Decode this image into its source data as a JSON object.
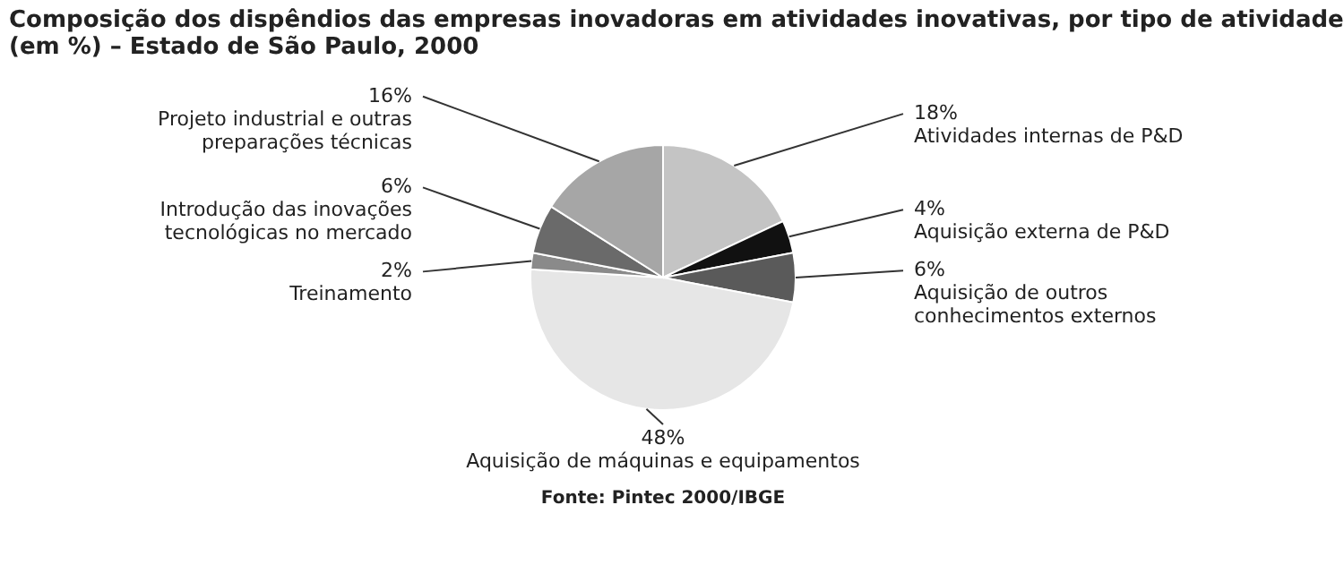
{
  "chart_data": {
    "type": "pie",
    "title": "Composição dos dispêndios das empresas inovadoras em atividades inovativas, por tipo de atividade (em %) – Estado de São Paulo, 2000",
    "categories": [
      "Atividades internas de P&D",
      "Aquisição externa de P&D",
      "Aquisição de outros conhecimentos externos",
      "Aquisição de máquinas e equipamentos",
      "Treinamento",
      "Introdução das inovações tecnológicas no mercado",
      "Projeto industrial e outras preparações técnicas"
    ],
    "values": [
      18,
      4,
      6,
      48,
      2,
      6,
      16
    ],
    "value_labels": [
      "18%",
      "4%",
      "6%",
      "48%",
      "2%",
      "6%",
      "16%"
    ],
    "colors": [
      "#c4c4c4",
      "#111111",
      "#5a5a5a",
      "#e6e6e6",
      "#8a8a8a",
      "#6a6a6a",
      "#a6a6a6"
    ],
    "legend": false,
    "annotations": [
      "Fonte: Pintec 2000/IBGE"
    ]
  }
}
